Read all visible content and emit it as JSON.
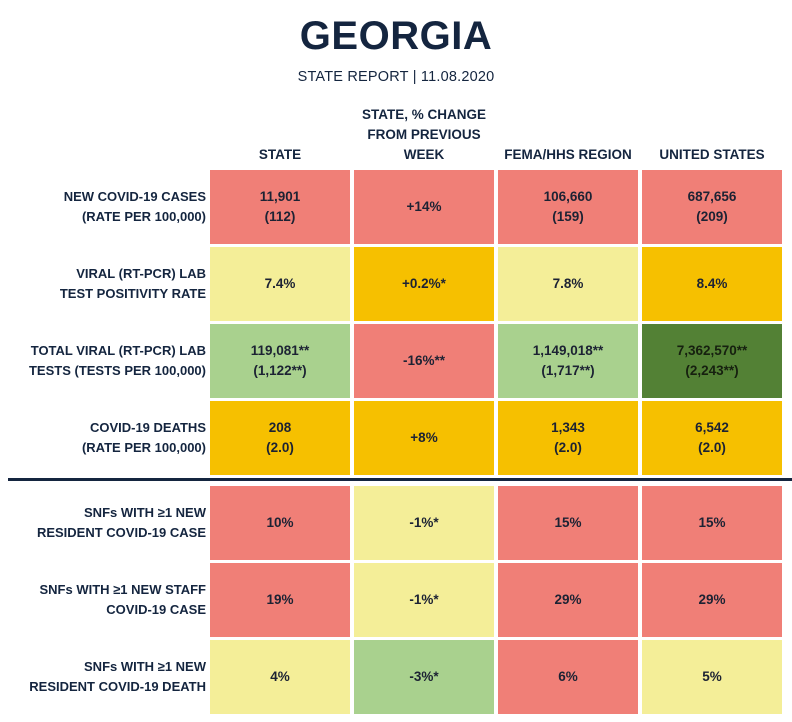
{
  "header": {
    "title": "GEORGIA",
    "subtitle": "STATE REPORT | 11.08.2020"
  },
  "columns": [
    {
      "lines": [
        "STATE"
      ]
    },
    {
      "lines": [
        "STATE, % CHANGE",
        "FROM PREVIOUS",
        "WEEK"
      ]
    },
    {
      "lines": [
        "FEMA/HHS REGION"
      ]
    },
    {
      "lines": [
        "UNITED STATES"
      ]
    }
  ],
  "colors": {
    "red": "#f07f77",
    "yellow": "#f4ee98",
    "orange": "#f6c000",
    "light_green": "#a9d18e",
    "dark_green": "#538135"
  },
  "rows": [
    {
      "label": [
        "NEW COVID-19 CASES",
        "(RATE PER 100,000)"
      ],
      "cells": [
        {
          "lines": [
            "11,901",
            "(112)"
          ],
          "color": "red"
        },
        {
          "lines": [
            "+14%"
          ],
          "color": "red"
        },
        {
          "lines": [
            "106,660",
            "(159)"
          ],
          "color": "red"
        },
        {
          "lines": [
            "687,656",
            "(209)"
          ],
          "color": "red"
        }
      ]
    },
    {
      "label": [
        "VIRAL (RT-PCR) LAB",
        "TEST POSITIVITY RATE"
      ],
      "cells": [
        {
          "lines": [
            "7.4%"
          ],
          "color": "yellow"
        },
        {
          "lines": [
            "+0.2%*"
          ],
          "color": "orange"
        },
        {
          "lines": [
            "7.8%"
          ],
          "color": "yellow"
        },
        {
          "lines": [
            "8.4%"
          ],
          "color": "orange"
        }
      ]
    },
    {
      "label": [
        "TOTAL VIRAL (RT-PCR) LAB",
        "TESTS (TESTS PER 100,000)"
      ],
      "cells": [
        {
          "lines": [
            "119,081**",
            "(1,122**)"
          ],
          "color": "light_green"
        },
        {
          "lines": [
            "-16%**"
          ],
          "color": "red"
        },
        {
          "lines": [
            "1,149,018**",
            "(1,717**)"
          ],
          "color": "light_green"
        },
        {
          "lines": [
            "7,362,570**",
            "(2,243**)"
          ],
          "color": "dark_green"
        }
      ]
    },
    {
      "label": [
        "COVID-19 DEATHS",
        "(RATE PER 100,000)"
      ],
      "cells": [
        {
          "lines": [
            "208",
            "(2.0)"
          ],
          "color": "orange"
        },
        {
          "lines": [
            "+8%"
          ],
          "color": "orange"
        },
        {
          "lines": [
            "1,343",
            "(2.0)"
          ],
          "color": "orange"
        },
        {
          "lines": [
            "6,542",
            "(2.0)"
          ],
          "color": "orange"
        }
      ]
    },
    {
      "label": [
        "SNFs WITH ≥1 NEW",
        "RESIDENT COVID-19 CASE"
      ],
      "cells": [
        {
          "lines": [
            "10%"
          ],
          "color": "red"
        },
        {
          "lines": [
            "-1%*"
          ],
          "color": "yellow"
        },
        {
          "lines": [
            "15%"
          ],
          "color": "red"
        },
        {
          "lines": [
            "15%"
          ],
          "color": "red"
        }
      ]
    },
    {
      "label": [
        "SNFs WITH ≥1 NEW STAFF",
        "COVID-19 CASE"
      ],
      "cells": [
        {
          "lines": [
            "19%"
          ],
          "color": "red"
        },
        {
          "lines": [
            "-1%*"
          ],
          "color": "yellow"
        },
        {
          "lines": [
            "29%"
          ],
          "color": "red"
        },
        {
          "lines": [
            "29%"
          ],
          "color": "red"
        }
      ]
    },
    {
      "label": [
        "SNFs WITH ≥1 NEW",
        "RESIDENT COVID-19 DEATH"
      ],
      "cells": [
        {
          "lines": [
            "4%"
          ],
          "color": "yellow"
        },
        {
          "lines": [
            "-3%*"
          ],
          "color": "light_green"
        },
        {
          "lines": [
            "6%"
          ],
          "color": "red"
        },
        {
          "lines": [
            "5%"
          ],
          "color": "yellow"
        }
      ]
    }
  ]
}
